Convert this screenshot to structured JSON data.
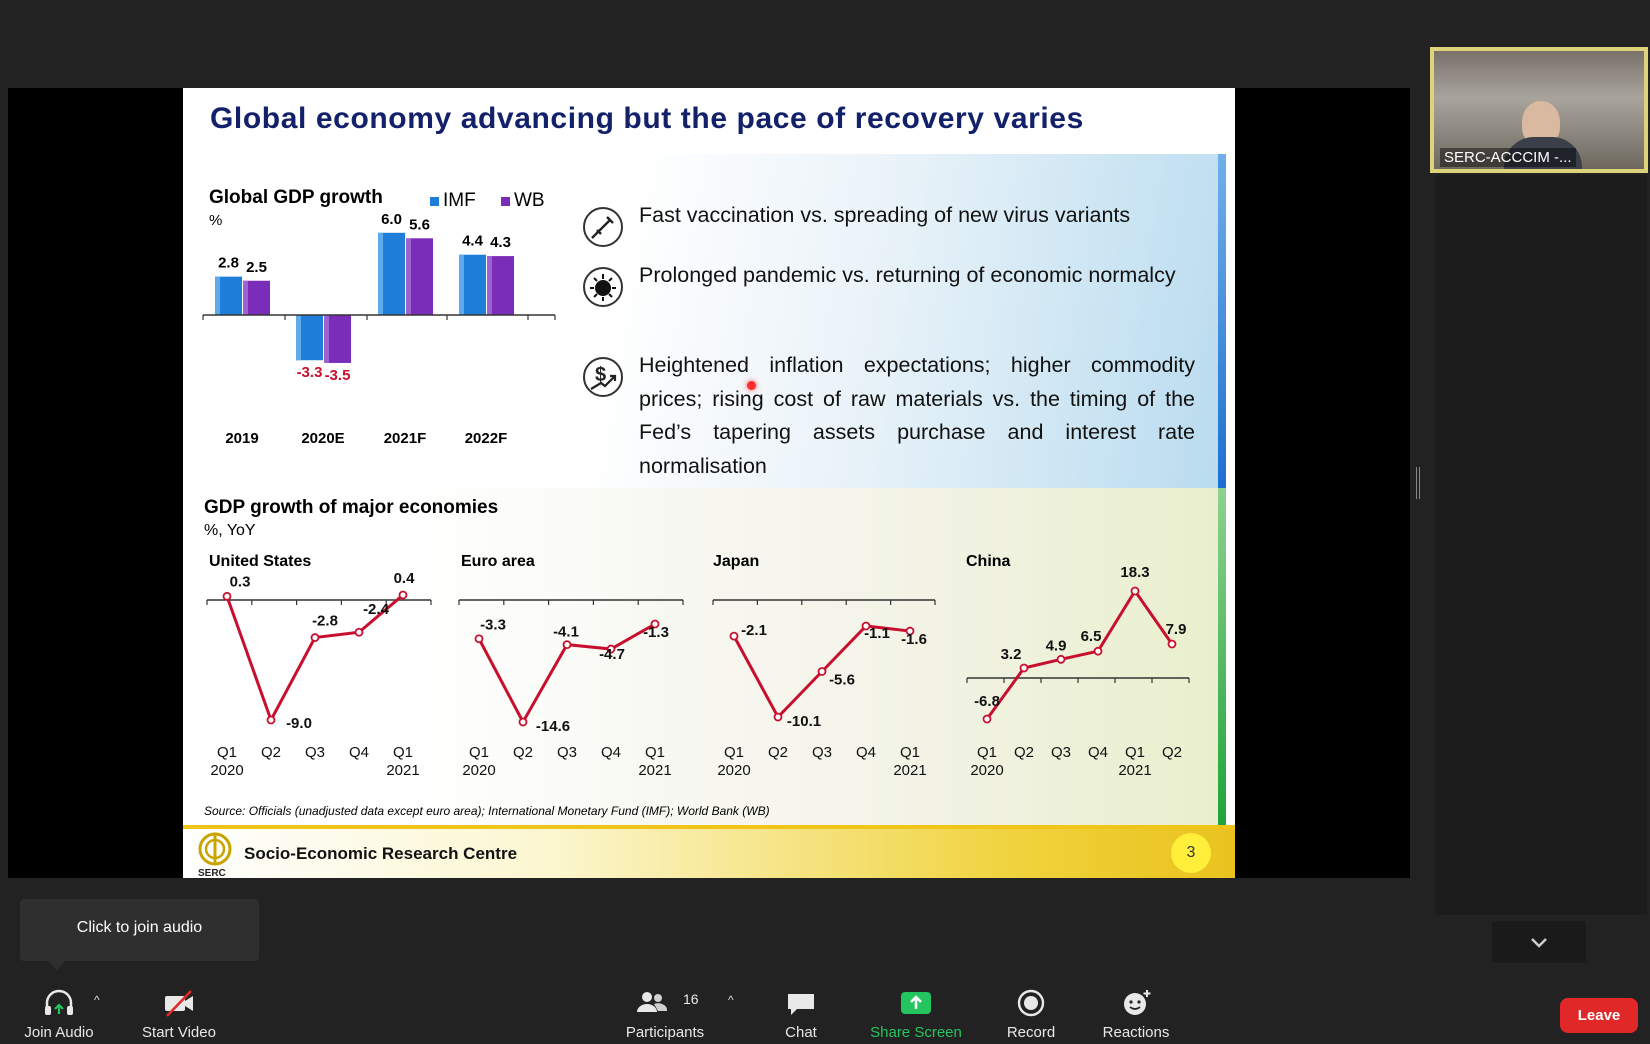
{
  "slide": {
    "title": "Global economy advancing but the pace of recovery varies",
    "gdp_chart": {
      "title": "Global GDP growth",
      "unit": "%",
      "legend": [
        {
          "label": "IMF",
          "color": "#1f7fd8"
        },
        {
          "label": "WB",
          "color": "#7a2db8"
        }
      ]
    },
    "bullets": [
      {
        "icon": "vaccine-icon",
        "text": "Fast vaccination vs. spreading of new virus variants"
      },
      {
        "icon": "virus-icon",
        "text": "Prolonged pandemic vs. returning of economic normalcy"
      },
      {
        "icon": "dollar-rising-icon",
        "text": "Heightened inflation expectations; higher commodity prices; rising cost of raw materials vs. the timing of the Fed’s tapering assets purchase and interest rate normalisation"
      }
    ],
    "major": {
      "title": "GDP growth of major economies",
      "unit": "%, YoY",
      "countries": [
        "United States",
        "Euro area",
        "Japan",
        "China"
      ]
    },
    "source": "Source:  Officials (unadjusted data except euro area); International Monetary Fund (IMF); World Bank (WB)",
    "footer": {
      "org": "Socio-Economic Research Centre",
      "logo_text": "SERC",
      "page": "3"
    }
  },
  "chart_data": [
    {
      "type": "bar",
      "title": "Global GDP growth",
      "ylabel": "%",
      "categories": [
        "2019",
        "2020E",
        "2021F",
        "2022F"
      ],
      "series": [
        {
          "name": "IMF",
          "values": [
            2.8,
            -3.3,
            6.0,
            4.4
          ],
          "labels": [
            "2.8",
            "-3.3",
            "6.0",
            "4.4"
          ]
        },
        {
          "name": "WB",
          "values": [
            2.5,
            -3.5,
            5.6,
            4.3
          ],
          "labels": [
            "2.5",
            "-3.5",
            "5.6",
            "4.3"
          ]
        }
      ],
      "legend_position": "top-right"
    },
    {
      "type": "line",
      "title": "United States",
      "x": [
        "Q1\n2020",
        "Q2",
        "Q3",
        "Q4",
        "Q1\n2021"
      ],
      "values": [
        0.3,
        -9.0,
        -2.8,
        -2.4,
        0.4
      ],
      "labels": [
        "0.3",
        "-9.0",
        "-2.8",
        "-2.4",
        "0.4"
      ]
    },
    {
      "type": "line",
      "title": "Euro area",
      "x": [
        "Q1\n2020",
        "Q2",
        "Q3",
        "Q4",
        "Q1\n2021"
      ],
      "values": [
        -3.3,
        -14.6,
        -4.1,
        -4.7,
        -1.3
      ],
      "labels": [
        "-3.3",
        "-14.6",
        "-4.1",
        "-4.7",
        "-1.3"
      ]
    },
    {
      "type": "line",
      "title": "Japan",
      "x": [
        "Q1\n2020",
        "Q2",
        "Q3",
        "Q4",
        "Q1\n2021"
      ],
      "values": [
        -2.1,
        -10.1,
        -5.6,
        -1.1,
        -1.6
      ],
      "labels": [
        "-2.1",
        "-10.1",
        "-5.6",
        "-1.1",
        "-1.6"
      ]
    },
    {
      "type": "line",
      "title": "China",
      "x": [
        "Q1\n2020",
        "Q2",
        "Q3",
        "Q4",
        "Q1\n2021",
        "Q2"
      ],
      "values": [
        -6.8,
        3.2,
        4.9,
        6.5,
        18.3,
        7.9
      ],
      "labels": [
        "-6.8",
        "3.2",
        "4.9",
        "6.5",
        "18.3",
        "7.9"
      ]
    }
  ],
  "meeting": {
    "participant_name": "SERC-ACCCIM -...",
    "tooltip": "Click to join audio",
    "toolbar": {
      "join_audio": "Join Audio",
      "start_video": "Start Video",
      "participants": "Participants",
      "participants_count": "16",
      "chat": "Chat",
      "share_screen": "Share Screen",
      "record": "Record",
      "reactions": "Reactions",
      "leave": "Leave"
    },
    "colors": {
      "share_green": "#22c55e",
      "leave_red": "#e02828",
      "line_red": "#c8102e"
    }
  }
}
